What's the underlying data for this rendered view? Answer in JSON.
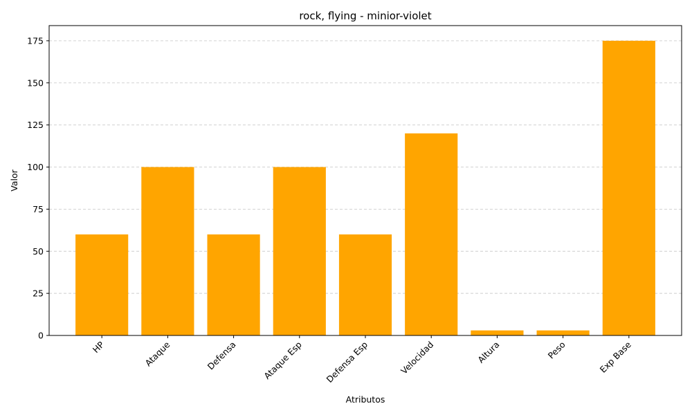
{
  "colors": {
    "bar": "#FFA500",
    "grid": "#cccccc",
    "axis": "#000000"
  },
  "chart_data": {
    "type": "bar",
    "title": "rock, flying - minior-violet",
    "xlabel": "Atributos",
    "ylabel": "Valor",
    "categories": [
      "HP",
      "Ataque",
      "Defensa",
      "Ataque Esp",
      "Defensa Esp",
      "Velocidad",
      "Altura",
      "Peso",
      "Exp Base"
    ],
    "values": [
      60,
      100,
      60,
      100,
      60,
      120,
      3,
      3,
      175
    ],
    "ylim": [
      0,
      184
    ],
    "yticks": [
      0,
      25,
      50,
      75,
      100,
      125,
      150,
      175
    ],
    "grid": "y-dashed",
    "xtick_rotation": 45
  }
}
